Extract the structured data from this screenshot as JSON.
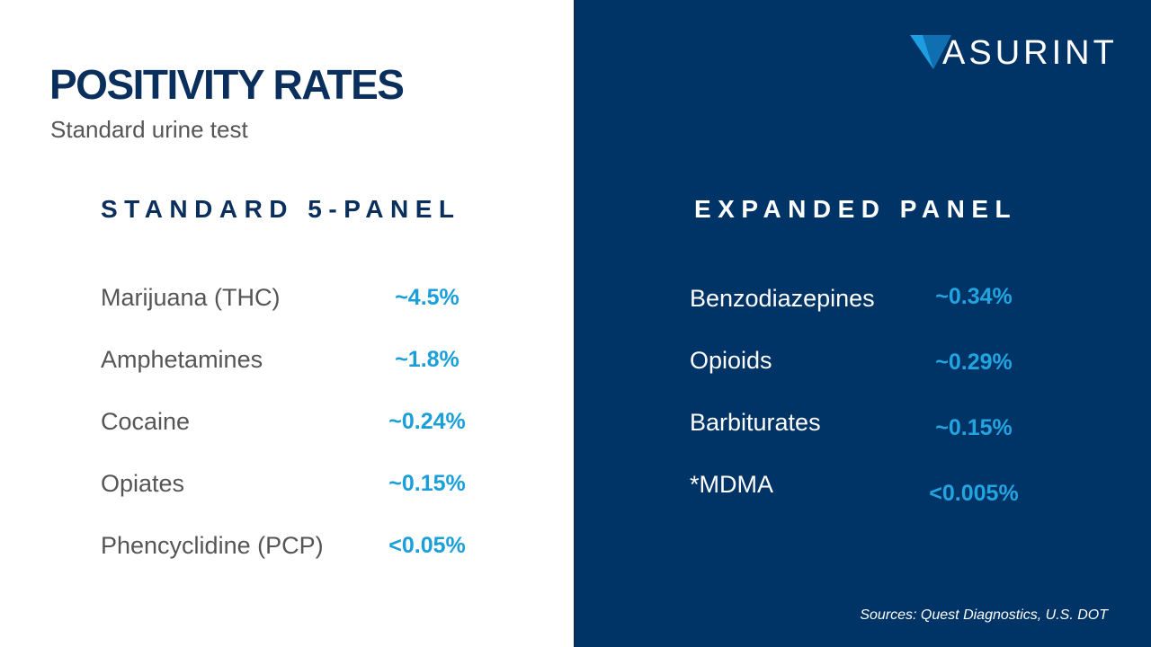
{
  "title": "POSITIVITY RATES",
  "subtitle": "Standard urine test",
  "logo": {
    "text": "ASURINT",
    "icon": "asurint-triangle-logo-icon",
    "colors": {
      "mark_light": "#1e9de0",
      "mark_dark": "#0f6fb0",
      "text": "#ffffff"
    }
  },
  "standard_panel": {
    "heading": "STANDARD 5-PANEL",
    "rows": [
      {
        "label": "Marijuana (THC)",
        "value": "~4.5%"
      },
      {
        "label": "Amphetamines",
        "value": "~1.8%"
      },
      {
        "label": "Cocaine",
        "value": "~0.24%"
      },
      {
        "label": "Opiates",
        "value": "~0.15%"
      },
      {
        "label": "Phencyclidine (PCP)",
        "value": "<0.05%"
      }
    ]
  },
  "expanded_panel": {
    "heading": "EXPANDED PANEL",
    "rows": [
      {
        "label": "Benzodiazepines",
        "value": "~0.34%"
      },
      {
        "label": "Opioids",
        "value": "~0.29%"
      },
      {
        "label": "Barbiturates",
        "value": "~0.15%"
      },
      {
        "label": "*MDMA",
        "value": "<0.005%"
      }
    ]
  },
  "sources": "Sources: Quest Diagnostics, U.S. DOT",
  "colors": {
    "navy_text": "#0a2f5c",
    "panel_background": "#003466",
    "value_accent": "#1a9fdb",
    "gray_text": "#555555"
  }
}
